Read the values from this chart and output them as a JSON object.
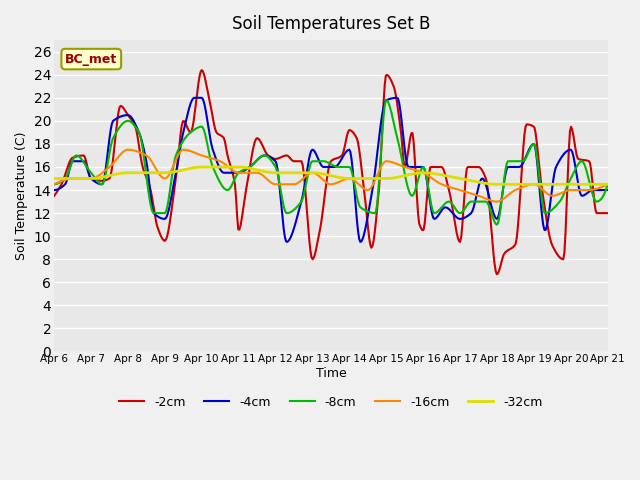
{
  "title": "Soil Temperatures Set B",
  "xlabel": "Time",
  "ylabel": "Soil Temperature (C)",
  "annotation": "BC_met",
  "ylim": [
    0,
    27
  ],
  "yticks": [
    0,
    2,
    4,
    6,
    8,
    10,
    12,
    14,
    16,
    18,
    20,
    22,
    24,
    26
  ],
  "xtick_labels": [
    "Apr 6",
    "Apr 7",
    "Apr 8",
    "Apr 9",
    "Apr 10",
    "Apr 11",
    "Apr 12",
    "Apr 13",
    "Apr 14",
    "Apr 15",
    "Apr 16",
    "Apr 17",
    "Apr 18",
    "Apr 19",
    "Apr 20",
    "Apr 21"
  ],
  "series": {
    "-2cm": {
      "color": "#cc0000",
      "lw": 1.5
    },
    "-4cm": {
      "color": "#0000cc",
      "lw": 1.5
    },
    "-8cm": {
      "color": "#00bb00",
      "lw": 1.5
    },
    "-16cm": {
      "color": "#ff8800",
      "lw": 1.5
    },
    "-32cm": {
      "color": "#dddd00",
      "lw": 2.0
    }
  },
  "bg_color": "#e8e8e8",
  "plot_bg": "#e8e8e8",
  "legend_order": [
    "-2cm",
    "-4cm",
    "-8cm",
    "-16cm",
    "-32cm"
  ],
  "key_x_2cm": [
    0.0,
    0.2,
    0.5,
    0.8,
    1.0,
    1.3,
    1.5,
    1.8,
    2.0,
    2.2,
    2.4,
    2.6,
    2.8,
    3.0,
    3.3,
    3.5,
    3.7,
    4.0,
    4.2,
    4.4,
    4.6,
    4.7,
    4.9,
    5.0,
    5.2,
    5.5,
    5.8,
    6.0,
    6.3,
    6.5,
    6.7,
    7.0,
    7.2,
    7.5,
    7.8,
    8.0,
    8.2,
    8.4,
    8.6,
    8.8,
    9.0,
    9.2,
    9.4,
    9.5,
    9.7,
    9.9,
    10.0,
    10.2,
    10.5,
    10.7,
    11.0,
    11.2,
    11.5,
    11.7,
    12.0,
    12.2,
    12.5,
    12.8,
    13.0,
    13.2,
    13.5,
    13.8,
    14.0,
    14.2,
    14.5,
    14.7,
    15.0
  ],
  "key_y_2cm": [
    13.5,
    14.5,
    16.8,
    17.0,
    15.0,
    14.8,
    15.0,
    21.3,
    20.5,
    19.5,
    16.0,
    14.2,
    10.8,
    9.6,
    15.0,
    20.0,
    19.0,
    24.4,
    22.0,
    19.0,
    18.5,
    17.0,
    14.5,
    10.5,
    14.0,
    18.5,
    17.0,
    16.7,
    17.0,
    16.5,
    16.5,
    8.0,
    10.5,
    16.5,
    17.0,
    19.2,
    18.5,
    14.0,
    9.0,
    14.0,
    24.0,
    23.0,
    19.0,
    16.0,
    19.0,
    11.0,
    10.5,
    16.0,
    16.0,
    14.0,
    9.5,
    16.0,
    16.0,
    15.0,
    6.7,
    8.5,
    9.3,
    19.7,
    19.5,
    14.5,
    9.2,
    8.0,
    19.5,
    16.7,
    16.5,
    12.0,
    12.0
  ],
  "key_x_4cm": [
    0.0,
    0.3,
    0.5,
    0.8,
    1.0,
    1.3,
    1.6,
    2.0,
    2.3,
    2.5,
    2.7,
    3.0,
    3.3,
    3.5,
    3.8,
    4.0,
    4.3,
    4.6,
    5.0,
    5.3,
    5.7,
    6.0,
    6.3,
    6.7,
    7.0,
    7.3,
    7.6,
    8.0,
    8.3,
    8.6,
    9.0,
    9.3,
    9.6,
    10.0,
    10.3,
    10.6,
    11.0,
    11.3,
    11.6,
    12.0,
    12.3,
    12.6,
    13.0,
    13.3,
    13.6,
    14.0,
    14.3,
    14.6,
    15.0
  ],
  "key_y_4cm": [
    14.0,
    14.5,
    16.5,
    16.5,
    15.0,
    14.5,
    20.0,
    20.5,
    19.0,
    16.5,
    12.0,
    11.5,
    15.5,
    19.0,
    22.0,
    22.0,
    17.5,
    15.5,
    15.5,
    16.0,
    17.0,
    16.5,
    9.5,
    13.0,
    17.5,
    16.0,
    16.0,
    17.5,
    9.5,
    13.5,
    21.8,
    22.0,
    16.0,
    16.0,
    11.5,
    12.5,
    11.5,
    12.0,
    15.0,
    11.5,
    16.0,
    16.0,
    18.0,
    10.5,
    16.0,
    17.5,
    13.5,
    14.0,
    14.0
  ],
  "key_x_8cm": [
    0.0,
    0.3,
    0.6,
    1.0,
    1.3,
    1.6,
    2.0,
    2.3,
    2.7,
    3.0,
    3.3,
    3.7,
    4.0,
    4.3,
    4.7,
    5.0,
    5.3,
    5.7,
    6.0,
    6.3,
    6.7,
    7.0,
    7.3,
    7.7,
    8.0,
    8.3,
    8.7,
    9.0,
    9.3,
    9.7,
    10.0,
    10.3,
    10.7,
    11.0,
    11.3,
    11.7,
    12.0,
    12.3,
    12.7,
    13.0,
    13.3,
    13.7,
    14.0,
    14.3,
    14.7,
    15.0
  ],
  "key_y_8cm": [
    14.5,
    15.0,
    17.0,
    15.5,
    14.5,
    18.5,
    20.0,
    19.0,
    12.0,
    12.0,
    17.0,
    19.0,
    19.5,
    16.0,
    14.0,
    15.5,
    16.0,
    17.0,
    16.0,
    12.0,
    13.0,
    16.5,
    16.5,
    16.0,
    16.0,
    12.5,
    12.0,
    21.8,
    18.5,
    13.5,
    16.0,
    12.0,
    13.0,
    12.0,
    13.0,
    13.0,
    11.0,
    16.5,
    16.5,
    18.0,
    12.0,
    13.0,
    15.0,
    16.5,
    13.0,
    14.5
  ],
  "key_x_16cm": [
    0.0,
    0.5,
    1.0,
    1.5,
    2.0,
    2.5,
    3.0,
    3.5,
    4.0,
    4.5,
    5.0,
    5.5,
    6.0,
    6.5,
    7.0,
    7.5,
    8.0,
    8.5,
    9.0,
    9.5,
    10.0,
    10.5,
    11.0,
    11.5,
    12.0,
    12.5,
    13.0,
    13.5,
    14.0,
    14.5,
    15.0
  ],
  "key_y_16cm": [
    14.5,
    15.0,
    15.0,
    16.0,
    17.5,
    17.0,
    15.0,
    17.5,
    17.0,
    16.5,
    15.5,
    15.5,
    14.5,
    14.5,
    15.5,
    14.5,
    15.0,
    14.0,
    16.5,
    16.0,
    15.5,
    14.5,
    14.0,
    13.5,
    13.0,
    14.0,
    14.5,
    13.5,
    14.0,
    14.0,
    14.5
  ],
  "key_x_32cm": [
    0.0,
    1.0,
    2.0,
    3.0,
    4.0,
    5.0,
    6.0,
    7.0,
    8.0,
    9.0,
    10.0,
    11.0,
    12.0,
    13.0,
    14.0,
    15.0
  ],
  "key_y_32cm": [
    15.0,
    15.0,
    15.5,
    15.5,
    16.0,
    16.0,
    15.5,
    15.5,
    15.0,
    15.0,
    15.5,
    15.0,
    14.5,
    14.5,
    14.5,
    14.5
  ]
}
